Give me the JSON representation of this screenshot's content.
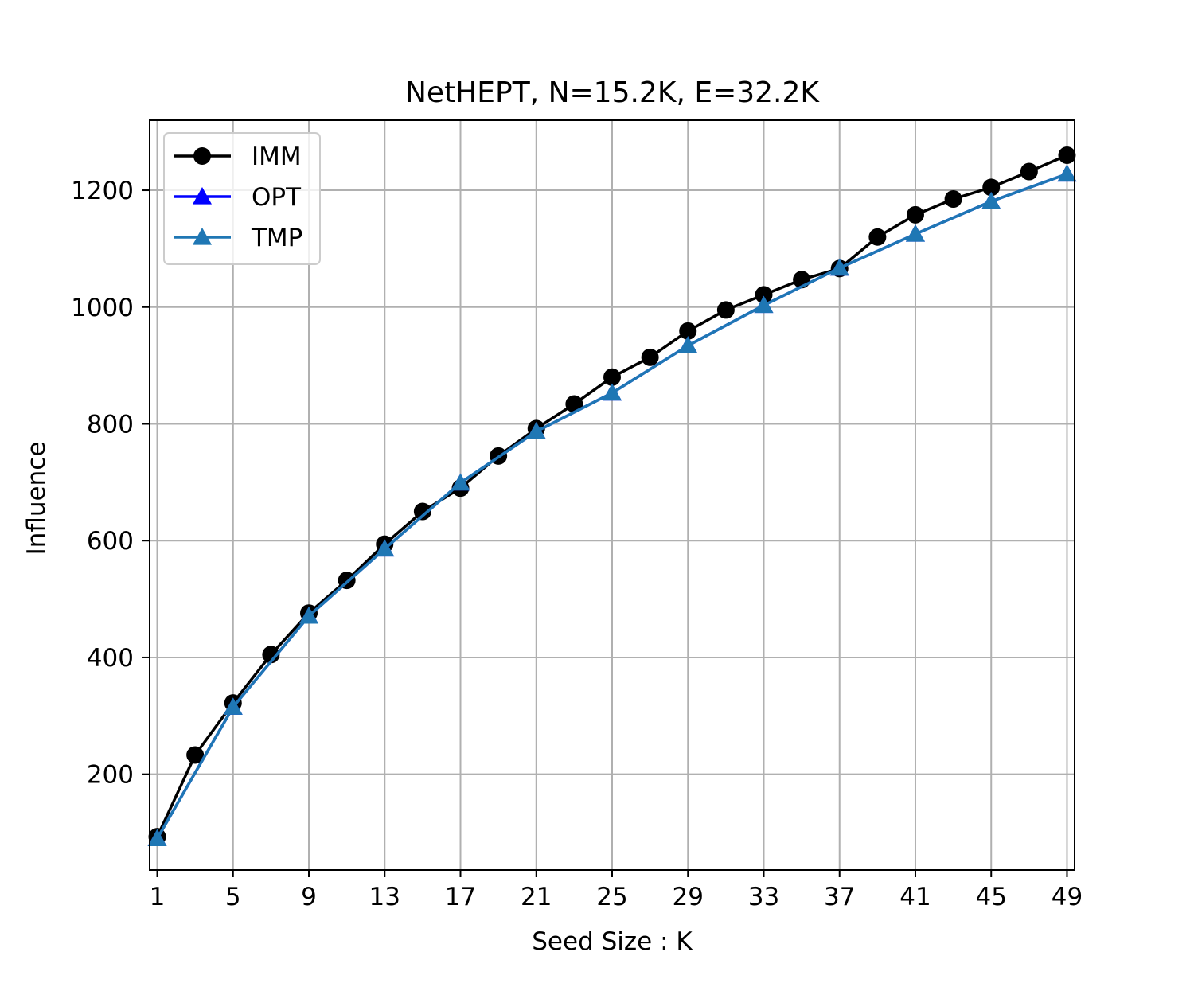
{
  "chart_data": {
    "type": "line",
    "title": "NetHEPT, N=15.2K, E=32.2K",
    "xlabel": "Seed Size : K",
    "ylabel": "Influence",
    "xlim": [
      0.6,
      49.4
    ],
    "ylim": [
      36,
      1320
    ],
    "xticks": [
      1,
      5,
      9,
      13,
      17,
      21,
      25,
      29,
      33,
      37,
      41,
      45,
      49
    ],
    "yticks": [
      200,
      400,
      600,
      800,
      1000,
      1200
    ],
    "grid": true,
    "legend_position": "upper-left",
    "series": [
      {
        "name": "IMM",
        "color": "#000000",
        "marker": "circle",
        "x": [
          1,
          3,
          5,
          7,
          9,
          11,
          13,
          15,
          17,
          19,
          21,
          23,
          25,
          27,
          29,
          31,
          33,
          35,
          37,
          39,
          41,
          43,
          45,
          47,
          49
        ],
        "y": [
          93,
          233,
          322,
          405,
          476,
          532,
          594,
          650,
          690,
          745,
          792,
          834,
          880,
          914,
          959,
          995,
          1021,
          1047,
          1066,
          1120,
          1158,
          1185,
          1205,
          1232,
          1260
        ]
      },
      {
        "name": "OPT",
        "color": "#0000ff",
        "marker": "triangle",
        "x": [
          1,
          5,
          9,
          13,
          17,
          21,
          25,
          29,
          33,
          37,
          41,
          45,
          49
        ],
        "y": [
          90,
          315,
          471,
          586,
          699,
          787,
          853,
          934,
          1003,
          1067,
          1125,
          1181,
          1228
        ]
      },
      {
        "name": "TMP",
        "color": "#1f77b4",
        "marker": "triangle",
        "x": [
          1,
          5,
          9,
          13,
          17,
          21,
          25,
          29,
          33,
          37,
          41,
          45,
          49
        ],
        "y": [
          90,
          315,
          471,
          586,
          699,
          787,
          853,
          934,
          1003,
          1067,
          1125,
          1181,
          1228
        ]
      }
    ]
  }
}
